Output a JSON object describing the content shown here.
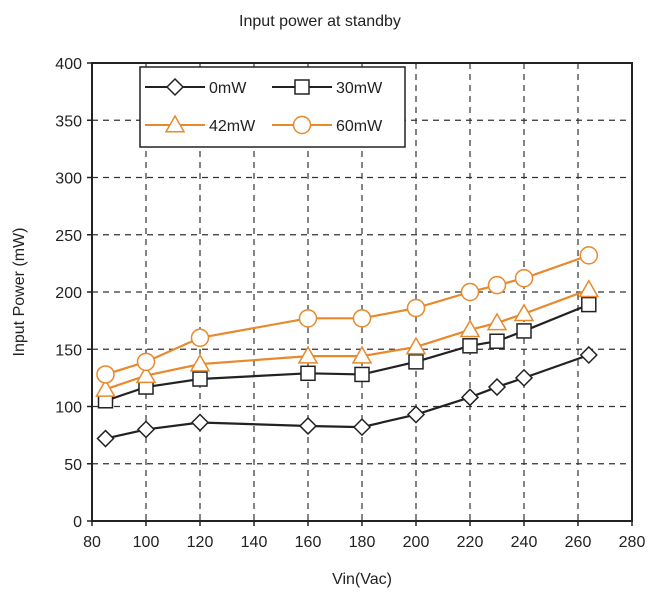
{
  "chart_data": {
    "type": "line",
    "title": "Input power at standby",
    "xlabel": "Vin(Vac)",
    "ylabel": "Input Power (mW)",
    "xlim": [
      80,
      280
    ],
    "ylim": [
      0,
      400
    ],
    "xticks": [
      80,
      100,
      120,
      140,
      160,
      180,
      200,
      220,
      240,
      260,
      280
    ],
    "yticks": [
      0,
      50,
      100,
      150,
      200,
      250,
      300,
      350,
      400
    ],
    "grid": true,
    "grid_style": "dashed",
    "legend_position": "top-left",
    "series": [
      {
        "name": "0mW",
        "color": "#222222",
        "marker": "diamond",
        "x": [
          85,
          100,
          120,
          160,
          180,
          200,
          220,
          230,
          240,
          264
        ],
        "y": [
          72,
          80,
          86,
          83,
          82,
          93,
          108,
          117,
          125,
          145
        ]
      },
      {
        "name": "30mW",
        "color": "#222222",
        "marker": "square",
        "x": [
          85,
          100,
          120,
          160,
          180,
          200,
          220,
          230,
          240,
          264
        ],
        "y": [
          105,
          117,
          124,
          129,
          128,
          139,
          153,
          157,
          166,
          189
        ]
      },
      {
        "name": "42mW",
        "color": "#e8892b",
        "marker": "triangle",
        "x": [
          85,
          100,
          120,
          160,
          180,
          200,
          220,
          230,
          240,
          264
        ],
        "y": [
          115,
          127,
          137,
          144,
          144,
          152,
          167,
          173,
          181,
          202
        ]
      },
      {
        "name": "60mW",
        "color": "#e8892b",
        "marker": "circle",
        "x": [
          85,
          100,
          120,
          160,
          180,
          200,
          220,
          230,
          240,
          264
        ],
        "y": [
          128,
          139,
          160,
          177,
          177,
          186,
          200,
          206,
          212,
          232
        ]
      }
    ]
  }
}
